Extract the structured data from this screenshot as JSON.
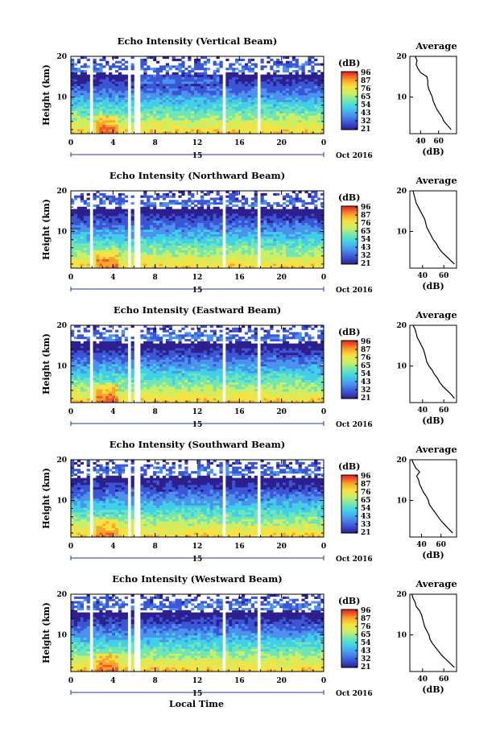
{
  "figure": {
    "panel_ylabel": "Height (km)",
    "xlabel": "Local Time",
    "date_label": "15",
    "month_label": "Oct 2016",
    "avg_title": "Average",
    "avg_xlabel": "(dB)",
    "cbar_label": "(dB)",
    "colorscale": [
      "#2c1f8e",
      "#3a55d6",
      "#4a92ee",
      "#3fd0e8",
      "#6fe6b4",
      "#c9ef66",
      "#f6e240",
      "#f8a52a",
      "#f2572a",
      "#e0201f"
    ]
  },
  "chart_data": [
    {
      "type": "heatmap",
      "title": "Echo Intensity (Vertical Beam)",
      "xlabel": "Local Time",
      "ylabel": "Height (km)",
      "x_ticks": [
        "0",
        "4",
        "8",
        "12",
        "16",
        "20",
        "0"
      ],
      "y_ticks": [
        "20",
        "10"
      ],
      "xlim": [
        0,
        24
      ],
      "ylim": [
        1,
        20
      ],
      "colorbar": {
        "label": "(dB)",
        "ticks": [
          "96",
          "87",
          "76",
          "65",
          "54",
          "43",
          "32",
          "21"
        ]
      },
      "data_gaps_hours": [
        [
          1.8,
          2.2
        ],
        [
          5.4,
          5.6
        ],
        [
          6.1,
          6.5
        ],
        [
          14.3,
          14.6
        ],
        [
          17.8,
          18.1
        ]
      ],
      "profile": {
        "title": "Average",
        "xlabel": "(dB)",
        "x_ticks": [
          "40",
          "60"
        ],
        "y_ticks": [
          "20",
          "10"
        ],
        "xlim": [
          28,
          80
        ],
        "height_km": [
          2,
          3,
          4,
          5,
          6,
          7,
          8,
          9,
          10,
          11,
          12,
          13,
          14,
          15,
          16,
          17,
          18,
          19,
          20
        ],
        "mean_db": [
          74,
          70,
          66,
          64,
          61,
          58,
          56,
          54,
          53,
          51,
          49,
          48,
          48,
          47,
          40,
          37,
          35,
          36,
          34
        ]
      }
    },
    {
      "type": "heatmap",
      "title": "Echo Intensity (Northward Beam)",
      "xlabel": "Local Time",
      "ylabel": "Height (km)",
      "x_ticks": [
        "0",
        "4",
        "8",
        "12",
        "16",
        "20",
        "0"
      ],
      "y_ticks": [
        "20",
        "10"
      ],
      "xlim": [
        0,
        24
      ],
      "ylim": [
        1,
        20
      ],
      "colorbar": {
        "label": "(dB)",
        "ticks": [
          "96",
          "87",
          "76",
          "65",
          "54",
          "43",
          "32",
          "21"
        ]
      },
      "data_gaps_hours": [
        [
          1.8,
          2.2
        ],
        [
          5.4,
          5.6
        ],
        [
          6.1,
          6.5
        ],
        [
          14.3,
          14.6
        ],
        [
          17.8,
          18.1
        ]
      ],
      "profile": {
        "title": "Average",
        "xlabel": "(dB)",
        "x_ticks": [
          "40",
          "60"
        ],
        "y_ticks": [
          "20",
          "10"
        ],
        "xlim": [
          28,
          72
        ],
        "height_km": [
          2,
          3,
          4,
          5,
          6,
          7,
          8,
          9,
          10,
          11,
          12,
          13,
          14,
          15,
          16,
          17,
          18,
          19,
          20
        ],
        "mean_db": [
          70,
          66,
          62,
          58,
          55,
          53,
          50,
          48,
          46,
          44,
          43,
          42,
          40,
          38,
          36,
          34,
          33,
          32,
          31
        ]
      }
    },
    {
      "type": "heatmap",
      "title": "Echo Intensity (Eastward Beam)",
      "xlabel": "Local Time",
      "ylabel": "Height (km)",
      "x_ticks": [
        "0",
        "4",
        "8",
        "12",
        "16",
        "20",
        "0"
      ],
      "y_ticks": [
        "20",
        "10"
      ],
      "xlim": [
        0,
        24
      ],
      "ylim": [
        1,
        20
      ],
      "colorbar": {
        "label": "(dB)",
        "ticks": [
          "96",
          "87",
          "76",
          "65",
          "54",
          "43",
          "32",
          "21"
        ]
      },
      "data_gaps_hours": [
        [
          1.8,
          2.2
        ],
        [
          5.4,
          5.6
        ],
        [
          6.1,
          6.5
        ],
        [
          14.3,
          14.6
        ],
        [
          17.8,
          18.1
        ]
      ],
      "profile": {
        "title": "Average",
        "xlabel": "(dB)",
        "x_ticks": [
          "40",
          "60"
        ],
        "y_ticks": [
          "20",
          "10"
        ],
        "xlim": [
          28,
          72
        ],
        "height_km": [
          2,
          3,
          4,
          5,
          6,
          7,
          8,
          9,
          10,
          11,
          12,
          13,
          14,
          15,
          16,
          17,
          18,
          19,
          20
        ],
        "mean_db": [
          70,
          67,
          63,
          59,
          56,
          54,
          51,
          49,
          46,
          44,
          43,
          42,
          41,
          39,
          37,
          35,
          34,
          33,
          31
        ]
      }
    },
    {
      "type": "heatmap",
      "title": "Echo Intensity (Southward Beam)",
      "xlabel": "Local Time",
      "ylabel": "Height (km)",
      "x_ticks": [
        "0",
        "4",
        "8",
        "12",
        "16",
        "20",
        "0"
      ],
      "y_ticks": [
        "20",
        "10"
      ],
      "xlim": [
        0,
        24
      ],
      "ylim": [
        1,
        20
      ],
      "colorbar": {
        "label": "(dB)",
        "ticks": [
          "96",
          "87",
          "76",
          "65",
          "54",
          "43",
          "33",
          "21"
        ]
      },
      "data_gaps_hours": [
        [
          1.8,
          2.2
        ],
        [
          5.4,
          5.6
        ],
        [
          6.1,
          6.5
        ],
        [
          14.3,
          14.6
        ],
        [
          17.8,
          18.1
        ]
      ],
      "profile": {
        "title": "Average",
        "xlabel": "(dB)",
        "x_ticks": [
          "40",
          "60"
        ],
        "y_ticks": [
          "20",
          "10"
        ],
        "xlim": [
          28,
          76
        ],
        "height_km": [
          2,
          3,
          4,
          5,
          6,
          7,
          8,
          9,
          10,
          11,
          12,
          13,
          14,
          15,
          16,
          17,
          18,
          19,
          20
        ],
        "mean_db": [
          72,
          68,
          64,
          60,
          57,
          54,
          51,
          48,
          47,
          45,
          42,
          40,
          38,
          37,
          35,
          38,
          34,
          32,
          30
        ]
      }
    },
    {
      "type": "heatmap",
      "title": "Echo Intensity (Westward Beam)",
      "xlabel": "Local Time",
      "ylabel": "Height (km)",
      "x_ticks": [
        "0",
        "4",
        "8",
        "12",
        "16",
        "20",
        "0"
      ],
      "y_ticks": [
        "20",
        "10"
      ],
      "xlim": [
        0,
        24
      ],
      "ylim": [
        1,
        20
      ],
      "colorbar": {
        "label": "(dB)",
        "ticks": [
          "96",
          "87",
          "76",
          "65",
          "54",
          "43",
          "32",
          "21"
        ]
      },
      "data_gaps_hours": [
        [
          1.8,
          2.2
        ],
        [
          5.4,
          5.6
        ],
        [
          6.1,
          6.5
        ],
        [
          14.3,
          14.6
        ],
        [
          17.8,
          18.1
        ]
      ],
      "profile": {
        "title": "Average",
        "xlabel": "(dB)",
        "x_ticks": [
          "40",
          "60"
        ],
        "y_ticks": [
          "20",
          "10"
        ],
        "xlim": [
          28,
          72
        ],
        "height_km": [
          2,
          3,
          4,
          5,
          6,
          7,
          8,
          9,
          10,
          11,
          12,
          13,
          14,
          15,
          16,
          17,
          18,
          19,
          20
        ],
        "mean_db": [
          70,
          66,
          62,
          58,
          55,
          52,
          49,
          47,
          46,
          44,
          42,
          41,
          40,
          39,
          37,
          34,
          33,
          31,
          30
        ]
      }
    }
  ]
}
